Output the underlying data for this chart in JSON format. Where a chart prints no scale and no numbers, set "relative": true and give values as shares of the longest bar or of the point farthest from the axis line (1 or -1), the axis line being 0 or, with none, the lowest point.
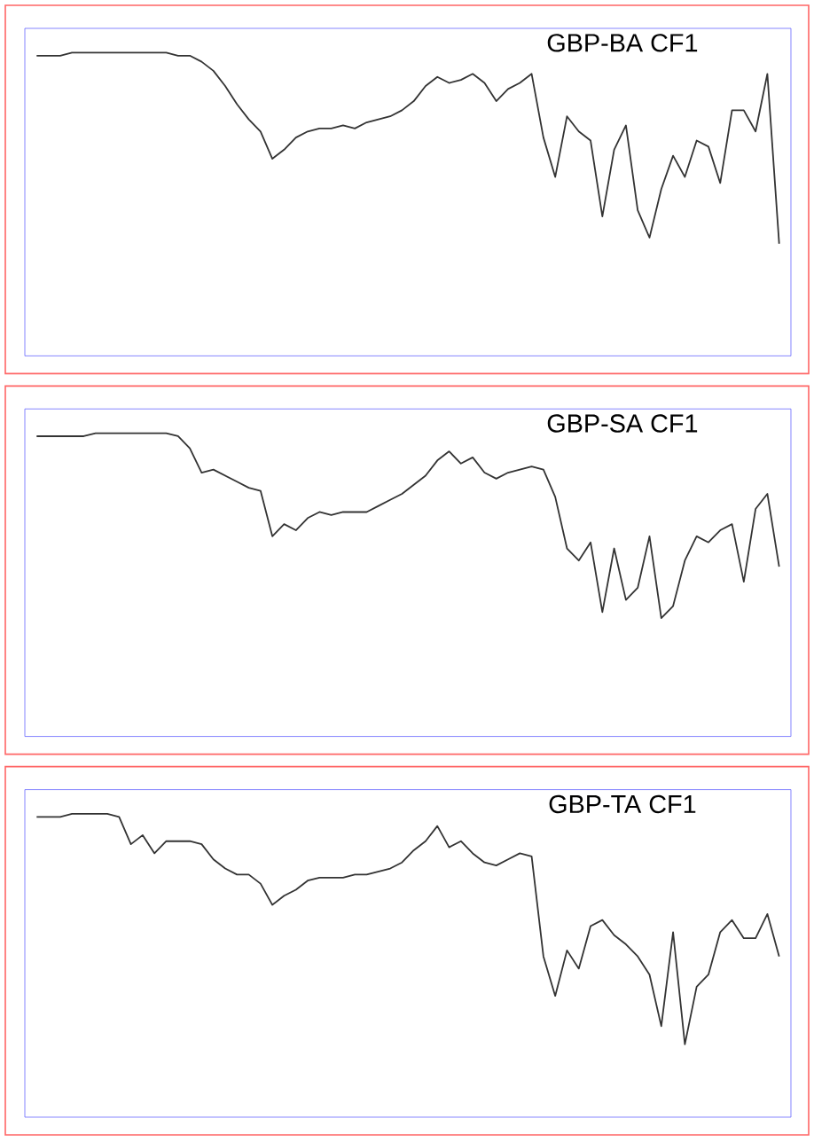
{
  "chart_data": [
    {
      "type": "line",
      "title": "GBP-BA CF1",
      "relative": true,
      "color": "#333333",
      "categories": [
        null,
        null,
        null,
        null,
        null,
        null,
        null,
        null,
        null,
        null,
        null,
        null,
        null,
        null,
        null,
        null,
        null,
        null,
        null,
        null,
        null,
        null,
        null,
        null,
        null,
        null,
        null,
        null,
        null,
        null,
        null,
        null,
        null,
        null,
        null,
        null,
        null,
        null,
        null,
        null,
        null,
        null,
        null,
        null,
        null,
        null,
        null,
        null,
        null,
        null,
        null,
        null,
        null,
        null,
        null,
        null,
        null,
        null,
        null,
        null,
        null,
        null,
        null,
        null
      ],
      "values": [
        0.99,
        0.99,
        0.99,
        1.0,
        1.0,
        1.0,
        1.0,
        1.0,
        1.0,
        1.0,
        1.0,
        1.0,
        0.99,
        0.99,
        0.97,
        0.94,
        0.89,
        0.83,
        0.78,
        0.74,
        0.65,
        0.68,
        0.72,
        0.74,
        0.75,
        0.75,
        0.76,
        0.75,
        0.77,
        0.78,
        0.79,
        0.81,
        0.84,
        0.89,
        0.92,
        0.9,
        0.91,
        0.93,
        0.9,
        0.84,
        0.88,
        0.9,
        0.93,
        0.72,
        0.59,
        0.79,
        0.74,
        0.71,
        0.46,
        0.68,
        0.76,
        0.48,
        0.39,
        0.55,
        0.66,
        0.59,
        0.71,
        0.69,
        0.57,
        0.81,
        0.81,
        0.74,
        0.93,
        0.37
      ]
    },
    {
      "type": "line",
      "title": "GBP-SA CF1",
      "relative": true,
      "color": "#333333",
      "categories": [
        null,
        null,
        null,
        null,
        null,
        null,
        null,
        null,
        null,
        null,
        null,
        null,
        null,
        null,
        null,
        null,
        null,
        null,
        null,
        null,
        null,
        null,
        null,
        null,
        null,
        null,
        null,
        null,
        null,
        null,
        null,
        null,
        null,
        null,
        null,
        null,
        null,
        null,
        null,
        null,
        null,
        null,
        null,
        null,
        null,
        null,
        null,
        null,
        null,
        null,
        null,
        null,
        null,
        null,
        null,
        null,
        null,
        null,
        null,
        null,
        null,
        null,
        null,
        null
      ],
      "values": [
        0.99,
        0.99,
        0.99,
        0.99,
        0.99,
        1.0,
        1.0,
        1.0,
        1.0,
        1.0,
        1.0,
        1.0,
        0.99,
        0.95,
        0.87,
        0.88,
        0.86,
        0.84,
        0.82,
        0.81,
        0.66,
        0.7,
        0.68,
        0.72,
        0.74,
        0.73,
        0.74,
        0.74,
        0.74,
        0.76,
        0.78,
        0.8,
        0.83,
        0.86,
        0.91,
        0.94,
        0.9,
        0.92,
        0.87,
        0.85,
        0.87,
        0.88,
        0.89,
        0.88,
        0.79,
        0.62,
        0.58,
        0.64,
        0.41,
        0.62,
        0.45,
        0.49,
        0.66,
        0.39,
        0.43,
        0.58,
        0.66,
        0.64,
        0.68,
        0.7,
        0.51,
        0.75,
        0.8,
        0.56
      ]
    },
    {
      "type": "line",
      "title": "GBP-TA CF1",
      "relative": true,
      "color": "#333333",
      "categories": [
        null,
        null,
        null,
        null,
        null,
        null,
        null,
        null,
        null,
        null,
        null,
        null,
        null,
        null,
        null,
        null,
        null,
        null,
        null,
        null,
        null,
        null,
        null,
        null,
        null,
        null,
        null,
        null,
        null,
        null,
        null,
        null,
        null,
        null,
        null,
        null,
        null,
        null,
        null,
        null,
        null,
        null,
        null,
        null,
        null,
        null,
        null,
        null,
        null,
        null,
        null,
        null,
        null,
        null,
        null,
        null,
        null,
        null,
        null,
        null,
        null,
        null,
        null,
        null
      ],
      "values": [
        0.99,
        0.99,
        0.99,
        1.0,
        1.0,
        1.0,
        1.0,
        0.99,
        0.9,
        0.93,
        0.87,
        0.91,
        0.91,
        0.91,
        0.9,
        0.85,
        0.82,
        0.8,
        0.8,
        0.77,
        0.7,
        0.73,
        0.75,
        0.78,
        0.79,
        0.79,
        0.79,
        0.8,
        0.8,
        0.81,
        0.82,
        0.84,
        0.88,
        0.91,
        0.96,
        0.89,
        0.91,
        0.87,
        0.84,
        0.83,
        0.85,
        0.87,
        0.86,
        0.53,
        0.4,
        0.55,
        0.49,
        0.63,
        0.65,
        0.6,
        0.57,
        0.53,
        0.47,
        0.3,
        0.61,
        0.24,
        0.43,
        0.47,
        0.61,
        0.65,
        0.59,
        0.59,
        0.67,
        0.53
      ]
    }
  ]
}
